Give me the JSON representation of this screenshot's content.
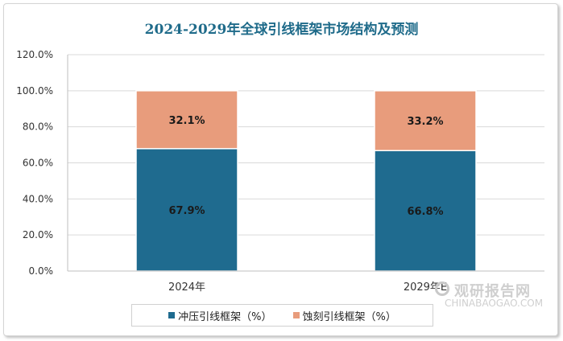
{
  "chart_data": {
    "type": "bar",
    "stacked": true,
    "title": "2024-2029年全球引线框架市场结构及预测",
    "categories": [
      "2024年",
      "2029年E"
    ],
    "series": [
      {
        "name": "冲压引线框架（%）",
        "values": [
          67.9,
          66.8
        ],
        "labels": [
          "67.9%",
          "66.8%"
        ],
        "color": "#1f6b8f"
      },
      {
        "name": "蚀刻引线框架（%）",
        "values": [
          32.1,
          33.2
        ],
        "labels": [
          "32.1%",
          "33.2%"
        ],
        "color": "#e89c7c"
      }
    ],
    "ylim": [
      0,
      120
    ],
    "yticks": [
      0,
      20,
      40,
      60,
      80,
      100,
      120
    ],
    "ytick_labels": [
      "0.0%",
      "20.0%",
      "40.0%",
      "60.0%",
      "80.0%",
      "100.0%",
      "120.0%"
    ],
    "grid": true,
    "legend_position": "bottom"
  },
  "watermark": {
    "cn_text": "观研报告网",
    "en_text": "CHINABAOGAO.COM",
    "icon": "circle-logo-icon"
  }
}
